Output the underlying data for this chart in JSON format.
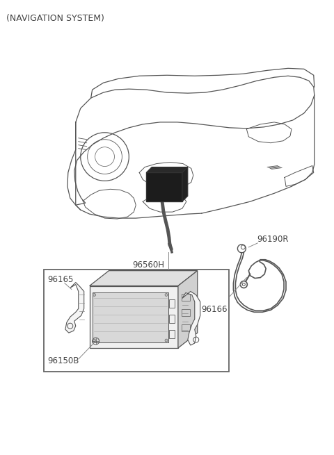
{
  "title": "(NAVIGATION SYSTEM)",
  "bg_color": "#ffffff",
  "text_color": "#444444",
  "line_color": "#555555",
  "label_96560H": "96560H",
  "label_96190R": "96190R",
  "label_96165": "96165",
  "label_96166": "96166",
  "label_96150B": "96150B",
  "title_fontsize": 9,
  "label_fontsize": 8.5
}
